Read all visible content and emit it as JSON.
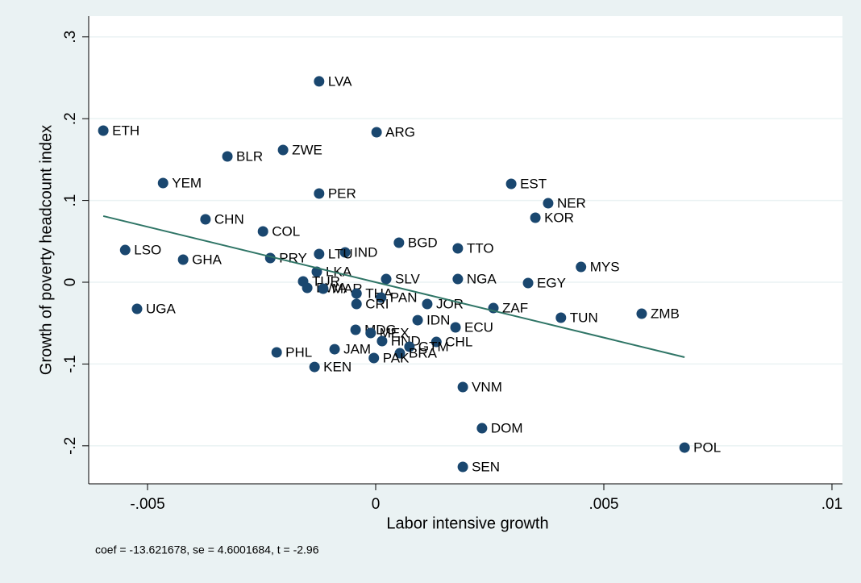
{
  "chart_data": {
    "type": "scatter",
    "x_label": "Labor intensive growth",
    "y_label": "Growth of poverty headcount index",
    "note": "coef = -13.621678, se = 4.6001684, t = -2.96",
    "xlim": [
      -0.00629,
      0.01023
    ],
    "ylim": [
      -0.2465,
      0.3254
    ],
    "xticks": [
      {
        "value": -0.005,
        "label": "-.005"
      },
      0,
      {
        "value": 0.005,
        "label": ".005"
      },
      {
        "value": 0.01,
        "label": ".01"
      }
    ],
    "yticks": [
      {
        "value": -0.2,
        "label": "-.2"
      },
      {
        "value": -0.1,
        "label": "-.1"
      },
      0,
      {
        "value": 0.1,
        "label": ".1"
      },
      {
        "value": 0.2,
        "label": ".2"
      },
      {
        "value": 0.3,
        "label": ".3"
      }
    ],
    "grid": true,
    "series": [
      {
        "color": "#1a476f",
        "labels": [
          "LVA",
          "ETH",
          "ARG",
          "ZWE",
          "BLR",
          "YEM",
          "EST",
          "PER",
          "NER",
          "CHN",
          "KOR",
          "COL",
          "BGD",
          "TTO",
          "LSO",
          "IND",
          "LTU",
          "GHA",
          "PRY",
          "MYS",
          "LKA",
          "SLV",
          "NGA",
          "EGY",
          "TUR",
          "BWA",
          "MAR",
          "THA",
          "PAN",
          "CRI",
          "JOR",
          "ZAF",
          "UGA",
          "TUN",
          "ZMB",
          "IDN",
          "ECU",
          "MDG",
          "MEX",
          "HND",
          "CHL",
          "GTM",
          "BRA",
          "PHL",
          "JAM",
          "PAK",
          "KEN",
          "VNM",
          "DOM",
          "POL",
          "SEN"
        ],
        "x": [
          -0.00124,
          -0.00597,
          2e-05,
          -0.00203,
          -0.00325,
          -0.00466,
          0.00297,
          -0.00124,
          0.00378,
          -0.00373,
          0.0035,
          -0.00247,
          0.00051,
          0.0018,
          -0.00549,
          -0.00067,
          -0.00124,
          -0.00422,
          -0.00231,
          0.0045,
          -0.00129,
          0.00023,
          0.0018,
          0.00334,
          -0.00159,
          -0.0015,
          -0.00115,
          -0.00042,
          0.00012,
          -0.00042,
          0.00113,
          0.00258,
          -0.00523,
          0.00406,
          0.00583,
          0.00092,
          0.00175,
          -0.00044,
          -0.00011,
          0.00014,
          0.00133,
          0.00074,
          0.00053,
          -0.00217,
          -0.0009,
          -4e-05,
          -0.00134,
          0.00191,
          0.00233,
          0.00677,
          0.00191
        ],
        "values": [
          0.2456,
          0.1854,
          0.1834,
          0.1617,
          0.1538,
          0.1213,
          0.1203,
          0.1085,
          0.0966,
          0.0769,
          0.0789,
          0.0621,
          0.0483,
          0.0414,
          0.0394,
          0.0365,
          0.0345,
          0.0276,
          0.0296,
          0.0187,
          0.0128,
          0.0039,
          0.0039,
          -0.001,
          0.001,
          -0.0069,
          -0.0079,
          -0.0138,
          -0.0187,
          -0.0266,
          -0.0266,
          -0.0316,
          -0.0325,
          -0.0434,
          -0.0385,
          -0.0464,
          -0.0552,
          -0.0582,
          -0.0621,
          -0.072,
          -0.073,
          -0.0789,
          -0.0868,
          -0.0858,
          -0.0819,
          -0.0927,
          -0.1036,
          -0.1282,
          -0.1785,
          -0.2022,
          -0.2258
        ]
      }
    ],
    "fit": {
      "color": "#2f7566",
      "x": [
        -0.00597,
        0.00677
      ],
      "y": [
        0.0809,
        -0.0917
      ]
    }
  }
}
